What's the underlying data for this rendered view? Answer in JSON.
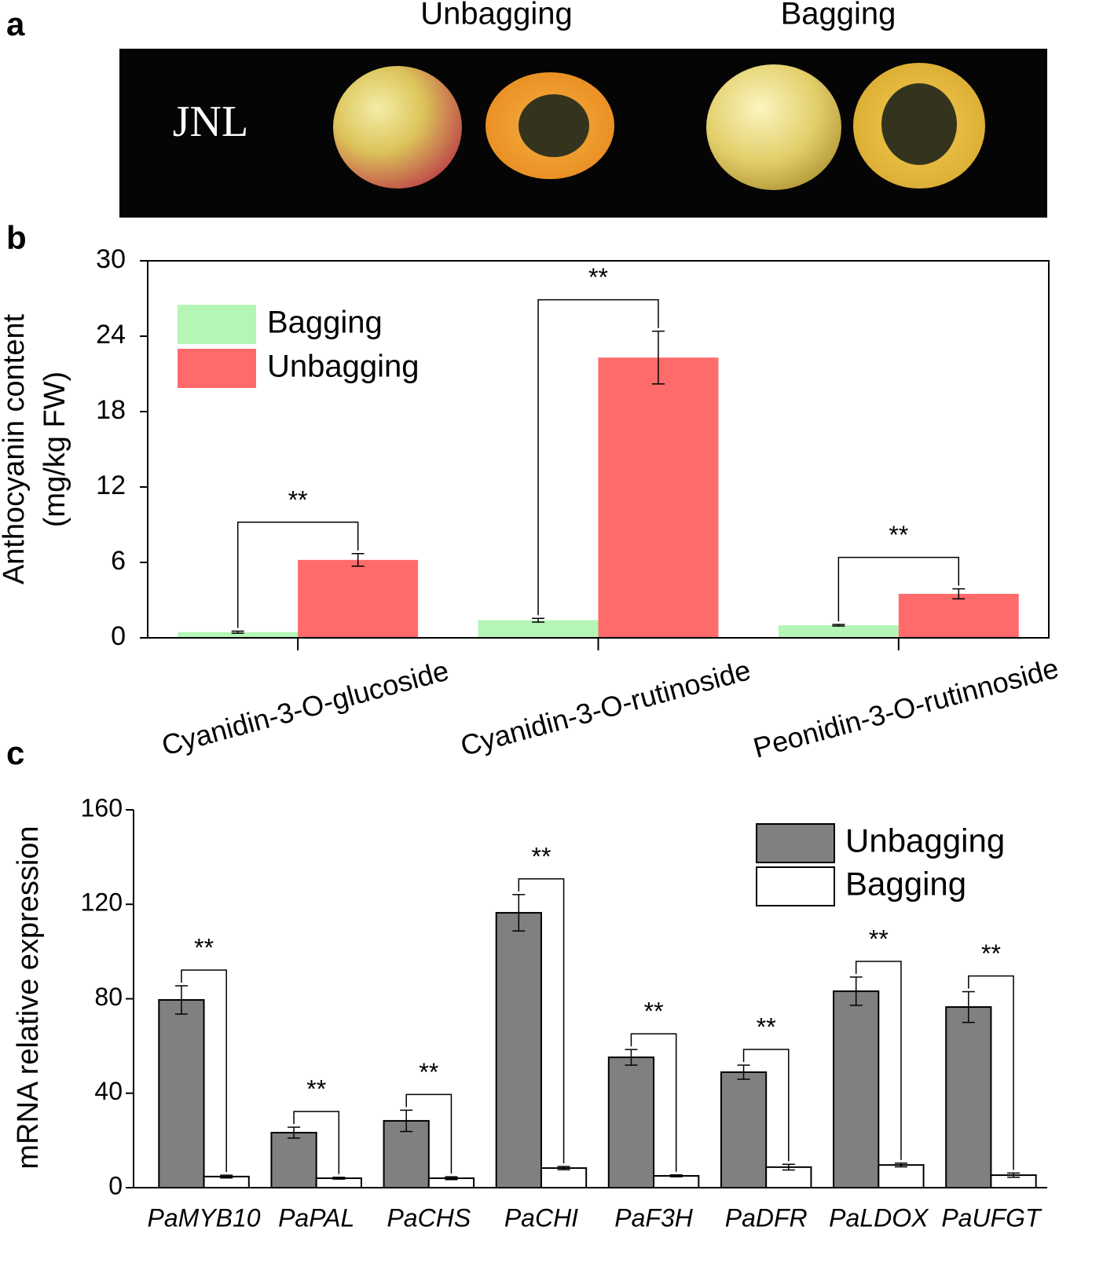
{
  "photo": {
    "label": "a",
    "headers": [
      "Unbagging",
      "Bagging"
    ],
    "sample": "JNL"
  },
  "chart_data": [
    {
      "type": "bar",
      "panel_label": "b",
      "y_label": [
        "Anthocyanin content",
        "(mg/kg FW)"
      ],
      "categories": [
        "Cyanidin-3-O-glucoside",
        "Cyanidin-3-O-rutinoside",
        "Peonidin-3-O-rutinnoside"
      ],
      "series": [
        {
          "name": "Bagging",
          "color": "#b5f5b5",
          "values": [
            0.45,
            1.4,
            1.0
          ],
          "errors": [
            0.08,
            0.15,
            0.06
          ]
        },
        {
          "name": "Unbagging",
          "color": "#ff6b6b",
          "values": [
            6.2,
            22.3,
            3.5
          ],
          "errors": [
            0.5,
            2.1,
            0.4
          ]
        }
      ],
      "significance": [
        "**",
        "**",
        "**"
      ],
      "ylim": [
        0,
        30
      ],
      "yticks": [
        0,
        6,
        12,
        18,
        24,
        30
      ],
      "legend": "upper left",
      "frame": true
    },
    {
      "type": "bar",
      "panel_label": "c",
      "y_label": [
        "mRNA relative expression"
      ],
      "categories": [
        "PaMYB10",
        "PaPAL",
        "PaCHS",
        "PaCHI",
        "PaF3H",
        "PaDFR",
        "PaLDOX",
        "PaUFGT"
      ],
      "series": [
        {
          "name": "Unbagging",
          "color": "#808080",
          "values": [
            79.5,
            23.3,
            28.3,
            116.4,
            55.2,
            48.9,
            83.2,
            76.5
          ],
          "errors": [
            6,
            2.3,
            4.5,
            7.7,
            3.3,
            3,
            6,
            6.5
          ]
        },
        {
          "name": "Bagging",
          "color": "#ffffff",
          "values": [
            4.7,
            4.0,
            4.0,
            8.3,
            5.0,
            8.7,
            9.6,
            5.3
          ],
          "errors": [
            0.6,
            0.4,
            0.6,
            0.7,
            0.4,
            1.2,
            0.8,
            0.9
          ]
        }
      ],
      "significance": [
        "**",
        "**",
        "**",
        "**",
        "**",
        "**",
        "**",
        "**"
      ],
      "ylim": [
        0,
        160
      ],
      "yticks": [
        0,
        40,
        80,
        120,
        160
      ],
      "legend": "upper right",
      "frame": false
    }
  ]
}
